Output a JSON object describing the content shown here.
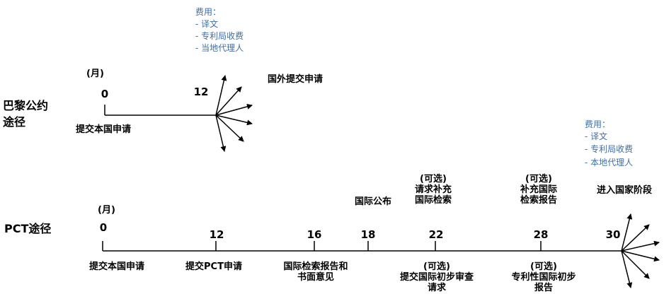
{
  "colors": {
    "line": "#000000",
    "fee_text": "#3f6ea8"
  },
  "paris": {
    "route_label": [
      "巴黎公约",
      "途径"
    ],
    "unit": "(月)",
    "start_month": "0",
    "start_label": "提交本国申请",
    "end_month": "12",
    "end_label": "国外提交申请",
    "fees": {
      "title": "费用：",
      "items": [
        "- 译文",
        "- 专利局收费",
        "- 当地代理人"
      ]
    }
  },
  "pct": {
    "route_label": "PCT途径",
    "unit": "(月)",
    "milestones": [
      {
        "month": "0",
        "below": [
          "提交本国申请"
        ]
      },
      {
        "month": "12",
        "below": [
          "提交PCT申请"
        ]
      },
      {
        "month": "16",
        "below": [
          "国际检索报告和",
          "书面意见"
        ]
      },
      {
        "month": "18",
        "above": [
          "国际公布"
        ]
      },
      {
        "month": "22",
        "above": [
          "(可选)",
          "请求补充",
          "国际检索"
        ],
        "below": [
          "(可选)",
          "提交国际初步审查",
          "请求"
        ]
      },
      {
        "month": "28",
        "above": [
          "(可选)",
          "补充国际",
          "检索报告"
        ],
        "below": [
          "(可选)",
          "专利性国际初步",
          "报告"
        ]
      },
      {
        "month": "30",
        "above": [
          "进入国家阶段"
        ]
      }
    ],
    "fees": {
      "title": "费用：",
      "items": [
        "- 译文",
        "- 专利局收费",
        "- 本地代理人"
      ]
    }
  }
}
